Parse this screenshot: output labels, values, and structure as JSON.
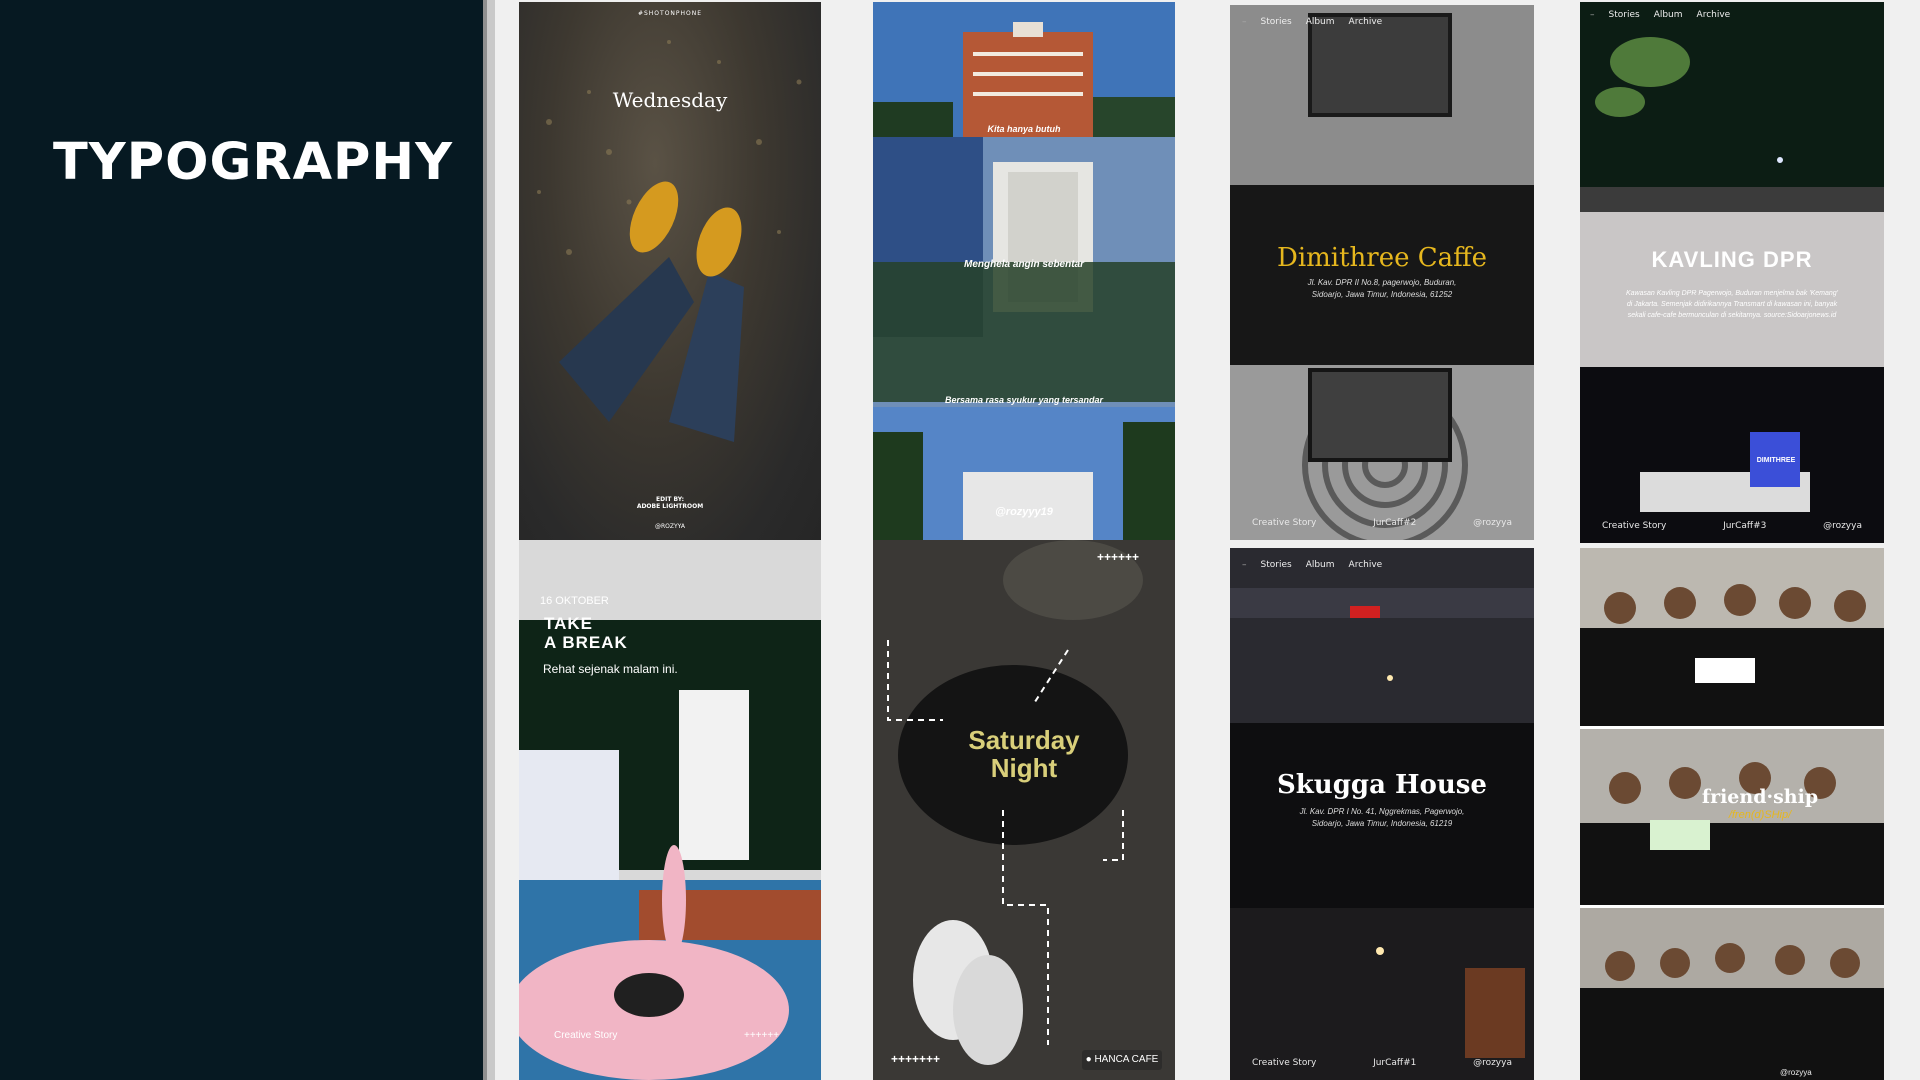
{
  "sidebar": {
    "title": "TYPOGRAPHY"
  },
  "panels": {
    "wednesday": {
      "hashtag": "#SHOTONPHONE",
      "title": "Wednesday",
      "edit_by": "EDIT BY:",
      "app": "ADOBE LIGHTROOM",
      "handle": "@ROZYYA"
    },
    "city": {
      "caption1": "Kita hanya butuh",
      "caption2": "Menghela angin sebentar",
      "caption3": "Bersama rasa syukur yang tersandar",
      "handle": "@rozyyy19"
    },
    "dimithree": {
      "nav": [
        "Stories",
        "Album",
        "Archive"
      ],
      "title": "Dimithree Caffe",
      "address1": "Jl. Kav. DPR II No.8, pagerwojo, Buduran,",
      "address2": "Sidoarjo, Jawa Timur, Indonesia, 61252",
      "footer_left": "Creative Story",
      "footer_mid": "JurCaff#2",
      "footer_right": "@rozyya"
    },
    "kavling": {
      "nav": [
        "Stories",
        "Album",
        "Archive"
      ],
      "title": "KAVLING DPR",
      "desc": "Kawasan Kavling DPR Pagerwojo, Buduran menjelma bak 'Kemang' di Jakarta. Semenjak didirikannya Transmart di kawasan ini, banyak sekali cafe-cafe bermunculan di sekitarnya. source:Sidoarjonews.id",
      "sign": "DIMITHREE",
      "footer_left": "Creative Story",
      "footer_mid": "JurCaff#3",
      "footer_right": "@rozyya"
    },
    "break": {
      "date": "16 OKTOBER",
      "title1": "TAKE",
      "title2": "A BREAK",
      "subtitle": "Rehat sejenak malam ini.",
      "footer_left": "Creative Story",
      "footer_right": "++++++"
    },
    "saturday": {
      "plus_top": "++++++",
      "title1": "Saturday",
      "title2": "Night",
      "plus_bottom": "+++++++",
      "location": "HANCA CAFE"
    },
    "skugga": {
      "nav": [
        "Stories",
        "Album",
        "Archive"
      ],
      "title": "Skugga House",
      "address1": "Jl. Kav. DPR I No. 41, Nggrekmas, Pagerwojo,",
      "address2": "Sidoarjo, Jawa Timur, Indonesia, 61219",
      "footer_left": "Creative Story",
      "footer_mid": "JurCaff#1",
      "footer_right": "@rozyya"
    },
    "friendship": {
      "title": "friend·ship",
      "phonetic": "/fren(d)SHip/",
      "handle": "@rozyya"
    }
  },
  "colors": {
    "sidebar_bg": "#061922",
    "canvas_bg": "#f0f0f0",
    "accent_yellow": "#e6b71e"
  }
}
